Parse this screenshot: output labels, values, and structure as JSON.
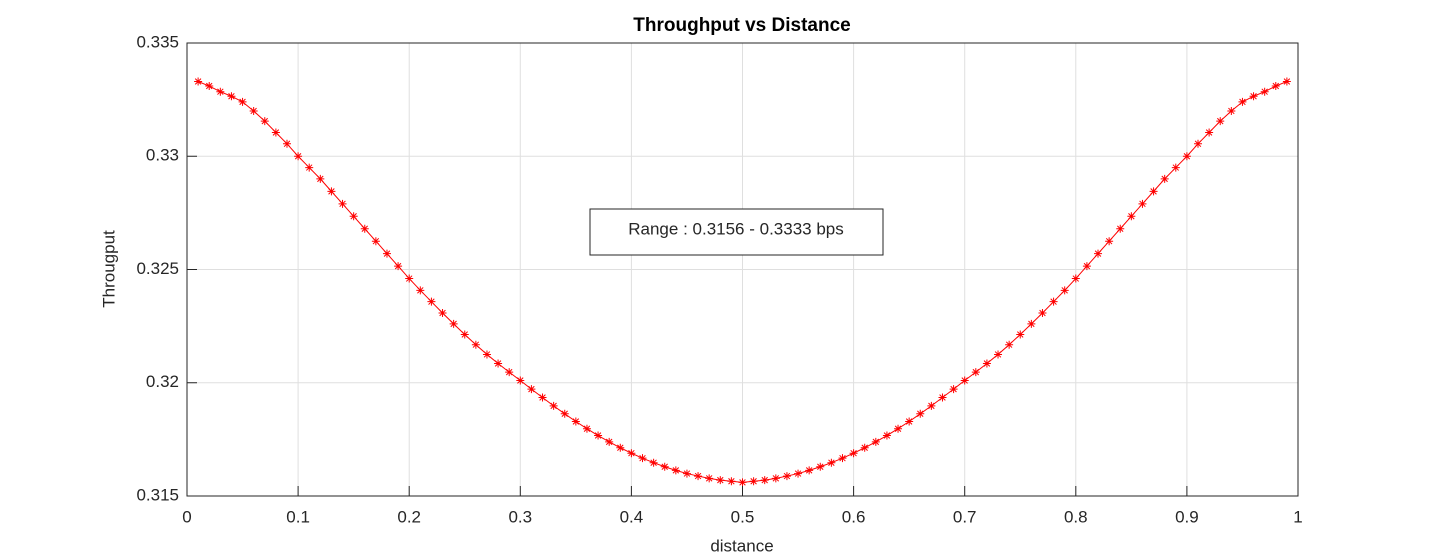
{
  "chart_data": {
    "type": "line",
    "title": "Throughput vs Distance",
    "x_label": "distance",
    "y_label": "Througput",
    "annotation": "Range : 0.3156 - 0.3333 bps",
    "color": "#ff0000",
    "marker": "asterisk",
    "grid": true,
    "xlim": [
      0,
      1
    ],
    "xticks": [
      0,
      0.1,
      0.2,
      0.3,
      0.4,
      0.5,
      0.6,
      0.7,
      0.8,
      0.9,
      1
    ],
    "ylim": [
      0.315,
      0.335
    ],
    "yticks": [
      0.315,
      0.32,
      0.325,
      0.33,
      0.335
    ],
    "x": [
      0.01,
      0.02,
      0.03,
      0.04,
      0.05,
      0.06,
      0.07,
      0.08,
      0.09,
      0.1,
      0.11,
      0.12,
      0.13,
      0.14,
      0.15,
      0.16,
      0.17,
      0.18,
      0.19,
      0.2,
      0.21,
      0.22,
      0.23,
      0.24,
      0.25,
      0.26,
      0.27,
      0.28,
      0.29,
      0.3,
      0.31,
      0.32,
      0.33,
      0.34,
      0.35,
      0.36,
      0.37,
      0.38,
      0.39,
      0.4,
      0.41,
      0.42,
      0.43,
      0.44,
      0.45,
      0.46,
      0.47,
      0.48,
      0.49,
      0.5,
      0.51,
      0.52,
      0.53,
      0.54,
      0.55,
      0.56,
      0.57,
      0.58,
      0.59,
      0.6,
      0.61,
      0.62,
      0.63,
      0.64,
      0.65,
      0.66,
      0.67,
      0.68,
      0.69,
      0.7,
      0.71,
      0.72,
      0.73,
      0.74,
      0.75,
      0.76,
      0.77,
      0.78,
      0.79,
      0.8,
      0.81,
      0.82,
      0.83,
      0.84,
      0.85,
      0.86,
      0.87,
      0.88,
      0.89,
      0.9,
      0.91,
      0.92,
      0.93,
      0.94,
      0.95,
      0.96,
      0.97,
      0.98,
      0.99
    ],
    "values": [
      0.3333,
      0.3331,
      0.33285,
      0.33265,
      0.3324,
      0.332,
      0.33155,
      0.33105,
      0.33055,
      0.33,
      0.3295,
      0.329,
      0.32845,
      0.3279,
      0.32735,
      0.3268,
      0.32625,
      0.3257,
      0.32515,
      0.3246,
      0.32408,
      0.32358,
      0.32308,
      0.3226,
      0.32213,
      0.32168,
      0.32125,
      0.32085,
      0.32047,
      0.3201,
      0.31972,
      0.31935,
      0.31898,
      0.31863,
      0.31829,
      0.31797,
      0.31767,
      0.31739,
      0.31713,
      0.31689,
      0.31667,
      0.31647,
      0.31629,
      0.31613,
      0.31599,
      0.31588,
      0.31578,
      0.3157,
      0.31565,
      0.3156,
      0.31565,
      0.3157,
      0.31578,
      0.31588,
      0.31599,
      0.31613,
      0.31629,
      0.31647,
      0.31667,
      0.31689,
      0.31713,
      0.31739,
      0.31767,
      0.31797,
      0.31829,
      0.31863,
      0.31898,
      0.31935,
      0.31972,
      0.3201,
      0.32047,
      0.32085,
      0.32125,
      0.32168,
      0.32213,
      0.3226,
      0.32308,
      0.32358,
      0.32408,
      0.3246,
      0.32515,
      0.3257,
      0.32625,
      0.3268,
      0.32735,
      0.3279,
      0.32845,
      0.329,
      0.3295,
      0.33,
      0.33055,
      0.33105,
      0.33155,
      0.332,
      0.3324,
      0.33265,
      0.33285,
      0.3331,
      0.3333
    ]
  }
}
